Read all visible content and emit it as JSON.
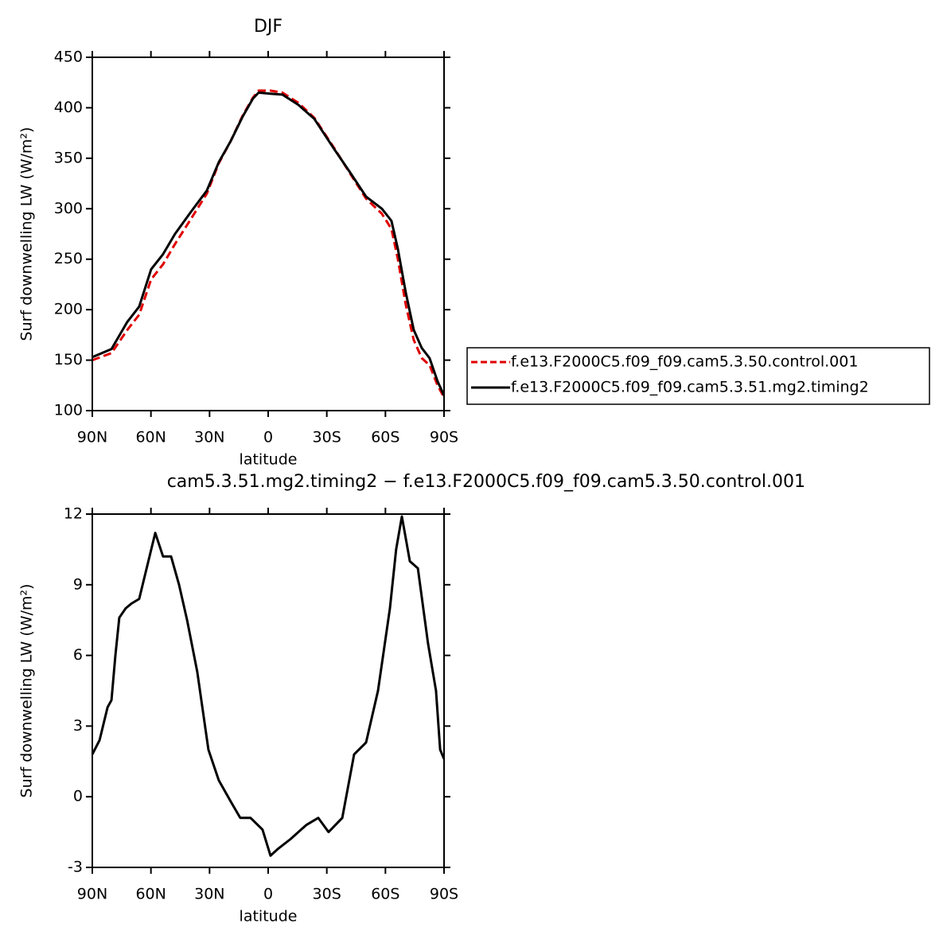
{
  "chart_data": [
    {
      "type": "line",
      "title": "DJF",
      "xlabel": "latitude",
      "ylabel": "Surf  downwelling LW (W/m²)",
      "x": [
        90,
        80.2,
        72.1,
        66.0,
        59.9,
        53.8,
        47.7,
        39.5,
        31.4,
        25.3,
        19.2,
        13.1,
        7.8,
        4.9,
        -1.2,
        -7.3,
        -15.4,
        -23.6,
        -33.8,
        -41.9,
        -50.1,
        -58.2,
        -63.1,
        -66.4,
        -70.4,
        -74.5,
        -78.6,
        -82.6,
        -86.7,
        -90
      ],
      "series": [
        {
          "name": "f.e13.F2000C5.f09_f09.cam5.3.50.control.001",
          "color": "#e00000",
          "dash": true,
          "values": [
            150,
            157,
            180,
            195,
            230,
            245,
            265,
            290,
            315,
            345,
            367,
            392,
            410,
            417,
            417,
            415,
            405,
            390,
            360,
            335,
            310,
            295,
            280,
            250,
            205,
            170,
            152,
            145,
            125,
            113
          ]
        },
        {
          "name": "f.e13.F2000C5.f09_f09.cam5.3.51.mg2.timing2",
          "color": "#000000",
          "dash": false,
          "values": [
            153,
            161,
            188,
            203,
            240,
            255,
            275,
            297,
            318,
            346,
            367,
            391,
            409,
            415,
            414,
            413,
            403,
            389,
            359,
            336,
            312,
            300,
            288,
            260,
            217,
            180,
            162,
            152,
            129,
            115
          ]
        }
      ],
      "xlim": [
        90,
        -90
      ],
      "xticks": [
        {
          "value": 90,
          "label": "90N"
        },
        {
          "value": 60,
          "label": "60N"
        },
        {
          "value": 30,
          "label": "30N"
        },
        0,
        {
          "value": -30,
          "label": "30S"
        },
        {
          "value": -60,
          "label": "60S"
        },
        {
          "value": -90,
          "label": "90S"
        }
      ],
      "ylim": [
        100,
        450
      ],
      "yticks": [
        100,
        150,
        200,
        250,
        300,
        350,
        400,
        450
      ],
      "legend": "right"
    },
    {
      "type": "line",
      "title": "cam5.3.51.mg2.timing2 − f.e13.F2000C5.f09_f09.cam5.3.50.control.001",
      "xlabel": "latitude",
      "ylabel": "Surf  downwelling LW (W/m²)",
      "x": [
        90,
        86.3,
        82.2,
        80.2,
        78.2,
        76.2,
        72.9,
        70.0,
        66.0,
        61.9,
        57.8,
        53.8,
        49.7,
        45.6,
        41.5,
        36.3,
        30.6,
        25.3,
        19.2,
        14.3,
        9.0,
        2.9,
        -1.2,
        -5.2,
        -11.4,
        -19.5,
        -25.6,
        -30.9,
        -37.9,
        -44.0,
        -50.1,
        -56.2,
        -62.3,
        -65.5,
        -68.4,
        -72.5,
        -76.6,
        -81.8,
        -85.9,
        -88.0,
        -90
      ],
      "series": [
        {
          "color": "#000000",
          "values": [
            1.8,
            2.4,
            3.8,
            4.1,
            6.0,
            7.6,
            8.0,
            8.2,
            8.4,
            9.8,
            11.2,
            10.2,
            10.2,
            9.0,
            7.5,
            5.3,
            2.0,
            0.7,
            -0.2,
            -0.9,
            -0.9,
            -1.4,
            -2.5,
            -2.2,
            -1.8,
            -1.2,
            -0.9,
            -1.5,
            -0.9,
            1.8,
            2.3,
            4.5,
            8.0,
            10.5,
            11.9,
            10.0,
            9.7,
            6.5,
            4.5,
            2.0,
            1.6
          ]
        }
      ],
      "xlim": [
        90,
        -90
      ],
      "xticks": [
        {
          "value": 90,
          "label": "90N"
        },
        {
          "value": 60,
          "label": "60N"
        },
        {
          "value": 30,
          "label": "30N"
        },
        0,
        {
          "value": -30,
          "label": "30S"
        },
        {
          "value": -60,
          "label": "60S"
        },
        {
          "value": -90,
          "label": "90S"
        }
      ],
      "ylim": [
        -3,
        12
      ],
      "yticks": [
        -3,
        0,
        3,
        6,
        9,
        12
      ]
    }
  ]
}
